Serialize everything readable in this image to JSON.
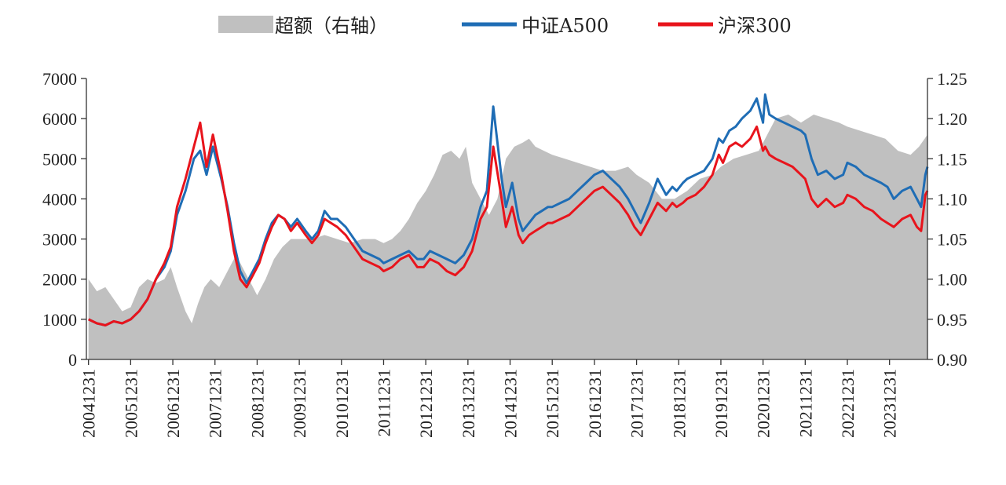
{
  "chart_data": {
    "type": "line",
    "legend_position": "top-center",
    "grid": false,
    "legend": [
      {
        "key": "excess",
        "label": "超额（右轴）",
        "kind": "area",
        "color": "#c0c0c0"
      },
      {
        "key": "a500",
        "label": "中证A500",
        "kind": "line",
        "color": "#1f6db5"
      },
      {
        "key": "hs300",
        "label": "沪深300",
        "kind": "line",
        "color": "#e8141c"
      }
    ],
    "x_tick_labels": [
      "20041231",
      "20051231",
      "20061231",
      "20071231",
      "20081231",
      "20091231",
      "20101231",
      "20111231",
      "20121231",
      "20131231",
      "20141231",
      "20151231",
      "20161231",
      "20171231",
      "20181231",
      "20191231",
      "20201231",
      "20211231",
      "20221231",
      "20231231"
    ],
    "x_range": [
      2004.95,
      2024.9
    ],
    "left_axis": {
      "ylim": [
        0,
        7000
      ],
      "ticks": [
        "0",
        "1000",
        "2000",
        "3000",
        "4000",
        "5000",
        "6000",
        "7000"
      ]
    },
    "right_axis": {
      "ylim": [
        0.9,
        1.25
      ],
      "ticks": [
        "0.90",
        "0.95",
        "1.00",
        "1.05",
        "1.10",
        "1.15",
        "1.20",
        "1.25"
      ]
    },
    "series": [
      {
        "key": "excess",
        "axis": "right",
        "x": [
          2005.0,
          2005.2,
          2005.4,
          2005.6,
          2005.8,
          2006.0,
          2006.2,
          2006.4,
          2006.6,
          2006.8,
          2006.95,
          2007.1,
          2007.3,
          2007.45,
          2007.6,
          2007.75,
          2007.9,
          2008.1,
          2008.3,
          2008.5,
          2008.7,
          2008.9,
          2009.0,
          2009.2,
          2009.4,
          2009.6,
          2009.8,
          2010.0,
          2010.3,
          2010.6,
          2010.9,
          2011.2,
          2011.5,
          2011.8,
          2012.0,
          2012.2,
          2012.4,
          2012.6,
          2012.8,
          2013.0,
          2013.2,
          2013.4,
          2013.6,
          2013.8,
          2013.95,
          2014.1,
          2014.3,
          2014.5,
          2014.7,
          2014.9,
          2015.1,
          2015.3,
          2015.45,
          2015.6,
          2015.8,
          2016.0,
          2016.3,
          2016.6,
          2016.9,
          2017.2,
          2017.5,
          2017.8,
          2018.0,
          2018.3,
          2018.6,
          2018.9,
          2019.2,
          2019.5,
          2019.8,
          2020.0,
          2020.3,
          2020.6,
          2020.9,
          2021.1,
          2021.3,
          2021.6,
          2021.9,
          2022.2,
          2022.5,
          2022.8,
          2023.0,
          2023.3,
          2023.6,
          2023.9,
          2024.2,
          2024.5,
          2024.7,
          2024.9
        ],
        "y": [
          1.0,
          0.985,
          0.99,
          0.975,
          0.96,
          0.965,
          0.99,
          1.0,
          0.995,
          1.0,
          1.015,
          0.99,
          0.96,
          0.945,
          0.97,
          0.99,
          1.0,
          0.99,
          1.01,
          1.03,
          1.01,
          0.99,
          0.98,
          1.0,
          1.025,
          1.04,
          1.05,
          1.05,
          1.05,
          1.055,
          1.05,
          1.045,
          1.05,
          1.05,
          1.045,
          1.05,
          1.06,
          1.075,
          1.095,
          1.11,
          1.13,
          1.155,
          1.16,
          1.15,
          1.165,
          1.12,
          1.1,
          1.08,
          1.1,
          1.15,
          1.165,
          1.17,
          1.175,
          1.165,
          1.16,
          1.155,
          1.15,
          1.145,
          1.14,
          1.135,
          1.135,
          1.14,
          1.13,
          1.12,
          1.1,
          1.1,
          1.11,
          1.125,
          1.13,
          1.14,
          1.15,
          1.155,
          1.16,
          1.18,
          1.2,
          1.205,
          1.195,
          1.205,
          1.2,
          1.195,
          1.19,
          1.185,
          1.18,
          1.175,
          1.16,
          1.155,
          1.165,
          1.18
        ]
      },
      {
        "key": "a500",
        "axis": "left",
        "x": [
          2005.0,
          2005.2,
          2005.4,
          2005.6,
          2005.8,
          2006.0,
          2006.2,
          2006.4,
          2006.6,
          2006.8,
          2006.95,
          2007.1,
          2007.3,
          2007.5,
          2007.65,
          2007.8,
          2007.95,
          2008.15,
          2008.3,
          2008.45,
          2008.6,
          2008.75,
          2008.9,
          2009.05,
          2009.2,
          2009.35,
          2009.5,
          2009.65,
          2009.8,
          2009.95,
          2010.15,
          2010.3,
          2010.45,
          2010.6,
          2010.75,
          2010.9,
          2011.1,
          2011.3,
          2011.5,
          2011.7,
          2011.9,
          2012.0,
          2012.2,
          2012.4,
          2012.6,
          2012.8,
          2012.95,
          2013.1,
          2013.3,
          2013.5,
          2013.7,
          2013.9,
          2014.1,
          2014.3,
          2014.45,
          2014.6,
          2014.8,
          2014.9,
          2015.05,
          2015.2,
          2015.3,
          2015.45,
          2015.6,
          2015.75,
          2015.9,
          2016.0,
          2016.2,
          2016.4,
          2016.6,
          2016.8,
          2017.0,
          2017.2,
          2017.4,
          2017.6,
          2017.8,
          2017.95,
          2018.1,
          2018.3,
          2018.5,
          2018.7,
          2018.85,
          2018.95,
          2019.1,
          2019.2,
          2019.4,
          2019.6,
          2019.8,
          2019.95,
          2020.05,
          2020.2,
          2020.35,
          2020.5,
          2020.7,
          2020.85,
          2021.0,
          2021.05,
          2021.15,
          2021.3,
          2021.5,
          2021.7,
          2021.9,
          2022.0,
          2022.15,
          2022.3,
          2022.5,
          2022.7,
          2022.9,
          2023.0,
          2023.2,
          2023.4,
          2023.6,
          2023.8,
          2023.95,
          2024.1,
          2024.3,
          2024.5,
          2024.65,
          2024.75,
          2024.85,
          2024.9
        ],
        "y": [
          1000,
          900,
          850,
          950,
          900,
          1000,
          1200,
          1500,
          2000,
          2300,
          2700,
          3600,
          4200,
          5000,
          5200,
          4600,
          5300,
          4500,
          3800,
          2900,
          2200,
          1900,
          2200,
          2500,
          3000,
          3400,
          3600,
          3500,
          3300,
          3500,
          3200,
          3000,
          3200,
          3700,
          3500,
          3500,
          3300,
          3000,
          2700,
          2600,
          2500,
          2400,
          2500,
          2600,
          2700,
          2500,
          2500,
          2700,
          2600,
          2500,
          2400,
          2600,
          3000,
          3800,
          4200,
          6300,
          4500,
          3800,
          4400,
          3500,
          3200,
          3400,
          3600,
          3700,
          3800,
          3800,
          3900,
          4000,
          4200,
          4400,
          4600,
          4700,
          4500,
          4300,
          4000,
          3700,
          3400,
          3900,
          4500,
          4100,
          4300,
          4200,
          4400,
          4500,
          4600,
          4700,
          5000,
          5500,
          5400,
          5700,
          5800,
          6000,
          6200,
          6500,
          5900,
          6600,
          6100,
          6000,
          5900,
          5800,
          5700,
          5600,
          5000,
          4600,
          4700,
          4500,
          4600,
          4900,
          4800,
          4600,
          4500,
          4400,
          4300,
          4000,
          4200,
          4300,
          4000,
          3800,
          4600,
          4800
        ]
      },
      {
        "key": "hs300",
        "axis": "left",
        "x": [
          2005.0,
          2005.2,
          2005.4,
          2005.6,
          2005.8,
          2006.0,
          2006.2,
          2006.4,
          2006.6,
          2006.8,
          2006.95,
          2007.1,
          2007.3,
          2007.5,
          2007.65,
          2007.8,
          2007.95,
          2008.15,
          2008.3,
          2008.45,
          2008.6,
          2008.75,
          2008.9,
          2009.05,
          2009.2,
          2009.35,
          2009.5,
          2009.65,
          2009.8,
          2009.95,
          2010.15,
          2010.3,
          2010.45,
          2010.6,
          2010.75,
          2010.9,
          2011.1,
          2011.3,
          2011.5,
          2011.7,
          2011.9,
          2012.0,
          2012.2,
          2012.4,
          2012.6,
          2012.8,
          2012.95,
          2013.1,
          2013.3,
          2013.5,
          2013.7,
          2013.9,
          2014.1,
          2014.3,
          2014.45,
          2014.6,
          2014.8,
          2014.9,
          2015.05,
          2015.2,
          2015.3,
          2015.45,
          2015.6,
          2015.75,
          2015.9,
          2016.0,
          2016.2,
          2016.4,
          2016.6,
          2016.8,
          2017.0,
          2017.2,
          2017.4,
          2017.6,
          2017.8,
          2017.95,
          2018.1,
          2018.3,
          2018.5,
          2018.7,
          2018.85,
          2018.95,
          2019.1,
          2019.2,
          2019.4,
          2019.6,
          2019.8,
          2019.95,
          2020.05,
          2020.2,
          2020.35,
          2020.5,
          2020.7,
          2020.85,
          2021.0,
          2021.05,
          2021.15,
          2021.3,
          2021.5,
          2021.7,
          2021.9,
          2022.0,
          2022.15,
          2022.3,
          2022.5,
          2022.7,
          2022.9,
          2023.0,
          2023.2,
          2023.4,
          2023.6,
          2023.8,
          2023.95,
          2024.1,
          2024.3,
          2024.5,
          2024.65,
          2024.75,
          2024.85,
          2024.9
        ],
        "y": [
          1000,
          900,
          850,
          950,
          900,
          1000,
          1200,
          1500,
          2000,
          2400,
          2800,
          3800,
          4500,
          5300,
          5900,
          4800,
          5600,
          4600,
          3700,
          2700,
          2000,
          1800,
          2100,
          2400,
          2900,
          3300,
          3600,
          3500,
          3200,
          3400,
          3100,
          2900,
          3100,
          3500,
          3400,
          3300,
          3100,
          2800,
          2500,
          2400,
          2300,
          2200,
          2300,
          2500,
          2600,
          2300,
          2300,
          2500,
          2400,
          2200,
          2100,
          2300,
          2700,
          3500,
          3800,
          5300,
          4000,
          3300,
          3800,
          3100,
          2900,
          3100,
          3200,
          3300,
          3400,
          3400,
          3500,
          3600,
          3800,
          4000,
          4200,
          4300,
          4100,
          3900,
          3600,
          3300,
          3100,
          3500,
          3900,
          3700,
          3900,
          3800,
          3900,
          4000,
          4100,
          4300,
          4600,
          5100,
          4900,
          5300,
          5400,
          5300,
          5500,
          5800,
          5200,
          5300,
          5100,
          5000,
          4900,
          4800,
          4600,
          4500,
          4000,
          3800,
          4000,
          3800,
          3900,
          4100,
          4000,
          3800,
          3700,
          3500,
          3400,
          3300,
          3500,
          3600,
          3300,
          3200,
          4100,
          4200
        ]
      }
    ]
  }
}
